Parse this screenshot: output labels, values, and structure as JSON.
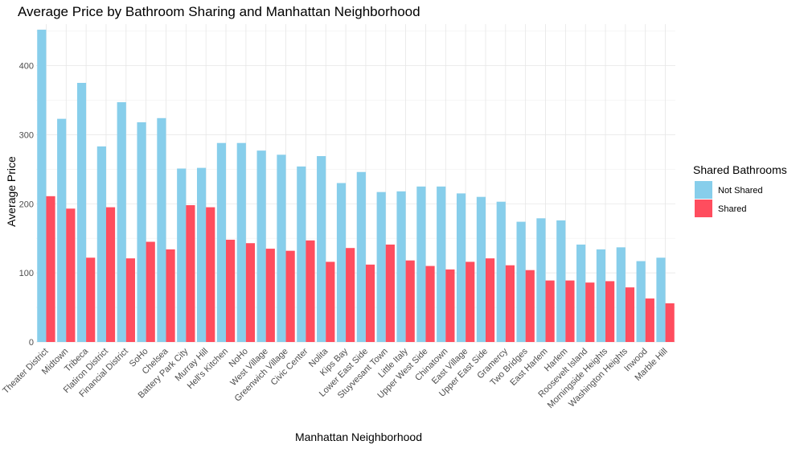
{
  "chart_data": {
    "type": "bar",
    "title": "Average Price by Bathroom Sharing and Manhattan Neighborhood",
    "xlabel": "Manhattan Neighborhood",
    "ylabel": "Average Price",
    "ylim": [
      0,
      460
    ],
    "yticks": [
      0,
      100,
      200,
      300,
      400
    ],
    "grid": true,
    "legend_position": "right",
    "legend_title": "Shared Bathrooms",
    "categories": [
      "Theater District",
      "Midtown",
      "Tribeca",
      "Flatiron District",
      "Financial District",
      "SoHo",
      "Chelsea",
      "Battery Park City",
      "Murray Hill",
      "Hell's Kitchen",
      "NoHo",
      "West Village",
      "Greenwich Village",
      "Civic Center",
      "Nolita",
      "Kips Bay",
      "Lower East Side",
      "Stuyvesant Town",
      "Little Italy",
      "Upper West Side",
      "Chinatown",
      "East Village",
      "Upper East Side",
      "Gramercy",
      "Two Bridges",
      "East Harlem",
      "Harlem",
      "Roosevelt Island",
      "Morningside Heights",
      "Washington Heights",
      "Inwood",
      "Marble Hill"
    ],
    "series": [
      {
        "name": "Not Shared",
        "color": "#87CEEB",
        "values": [
          452,
          323,
          375,
          283,
          347,
          318,
          324,
          251,
          252,
          288,
          288,
          277,
          271,
          254,
          269,
          230,
          246,
          217,
          218,
          225,
          225,
          215,
          210,
          203,
          174,
          179,
          176,
          141,
          134,
          137,
          117,
          122
        ]
      },
      {
        "name": "Shared",
        "color": "#FF4D5E",
        "values": [
          211,
          193,
          122,
          195,
          121,
          145,
          134,
          198,
          195,
          148,
          143,
          135,
          132,
          147,
          116,
          136,
          112,
          141,
          118,
          110,
          105,
          116,
          121,
          111,
          104,
          89,
          89,
          86,
          88,
          79,
          63,
          56
        ]
      }
    ]
  }
}
